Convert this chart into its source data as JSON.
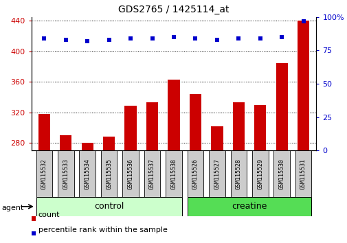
{
  "title": "GDS2765 / 1425114_at",
  "categories": [
    "GSM115532",
    "GSM115533",
    "GSM115534",
    "GSM115535",
    "GSM115536",
    "GSM115537",
    "GSM115538",
    "GSM115526",
    "GSM115527",
    "GSM115528",
    "GSM115529",
    "GSM115530",
    "GSM115531"
  ],
  "bar_values": [
    318,
    290,
    280,
    288,
    329,
    333,
    363,
    344,
    302,
    333,
    330,
    385,
    440
  ],
  "pct_values": [
    84,
    83,
    82,
    83,
    84,
    84,
    85,
    84,
    83,
    84,
    84,
    85,
    97
  ],
  "bar_color": "#cc0000",
  "pct_color": "#0000cc",
  "ylim_left": [
    270,
    445
  ],
  "ylim_right": [
    0,
    100
  ],
  "yticks_left": [
    280,
    320,
    360,
    400,
    440
  ],
  "yticks_right": [
    0,
    25,
    50,
    75,
    100
  ],
  "control_indices": [
    0,
    1,
    2,
    3,
    4,
    5,
    6
  ],
  "creatine_indices": [
    7,
    8,
    9,
    10,
    11,
    12
  ],
  "control_label": "control",
  "creatine_label": "creatine",
  "agent_label": "agent",
  "legend_count_label": "count",
  "legend_pct_label": "percentile rank within the sample",
  "control_color": "#ccffcc",
  "creatine_color": "#55dd55",
  "tick_bg_color": "#cccccc",
  "bar_bottom": 270,
  "xlim": [
    -0.6,
    12.6
  ],
  "bar_width": 0.55
}
